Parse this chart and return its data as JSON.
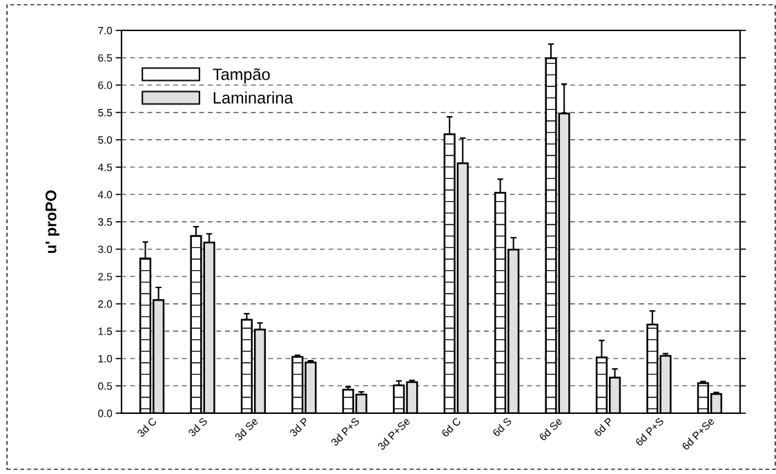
{
  "chart_data": {
    "type": "bar",
    "ylabel": "u' proPO",
    "categories": [
      "3d C",
      "3d S",
      "3d Se",
      "3d P",
      "3d P+S",
      "3d P+Se",
      "6d C",
      "6d S",
      "6d Se",
      "6d P",
      "6d P+S",
      "6d P+Se"
    ],
    "series": [
      {
        "name": "Tampão",
        "color": "#ffffff",
        "values": [
          2.83,
          3.24,
          1.71,
          1.03,
          0.43,
          0.51,
          5.1,
          4.03,
          6.49,
          1.02,
          1.62,
          0.55
        ],
        "errors": [
          [
            2.83,
            3.13
          ],
          [
            3.24,
            3.41
          ],
          [
            1.71,
            1.82
          ],
          [
            1.03,
            1.06
          ],
          [
            0.43,
            0.48
          ],
          [
            0.51,
            0.59
          ],
          [
            5.1,
            5.42
          ],
          [
            4.03,
            4.28
          ],
          [
            6.49,
            6.75
          ],
          [
            1.02,
            1.33
          ],
          [
            1.62,
            1.87
          ],
          [
            0.55,
            0.58
          ]
        ]
      },
      {
        "name": "Laminarina",
        "color": "#e0e0e0",
        "values": [
          2.07,
          3.12,
          1.53,
          0.93,
          0.34,
          0.57,
          4.57,
          2.99,
          5.48,
          0.65,
          1.05,
          0.35
        ],
        "errors": [
          [
            2.07,
            2.3
          ],
          [
            3.12,
            3.28
          ],
          [
            1.53,
            1.65
          ],
          [
            0.93,
            0.96
          ],
          [
            0.34,
            0.39
          ],
          [
            0.57,
            0.6
          ],
          [
            4.57,
            5.03
          ],
          [
            2.99,
            3.21
          ],
          [
            5.48,
            6.02
          ],
          [
            0.65,
            0.81
          ],
          [
            1.05,
            1.09
          ],
          [
            0.35,
            0.38
          ]
        ]
      }
    ],
    "ylim": [
      0,
      7
    ],
    "yticks": [
      {
        "value": 0,
        "label": "0.0"
      },
      {
        "value": 0.5,
        "label": "0.5"
      },
      {
        "value": 1,
        "label": "1.0"
      },
      {
        "value": 1.5,
        "label": "1.5"
      },
      {
        "value": 2,
        "label": "2.0"
      },
      {
        "value": 2.5,
        "label": "2.5"
      },
      {
        "value": 3,
        "label": "3.0"
      },
      {
        "value": 3.5,
        "label": "3.5"
      },
      {
        "value": 4,
        "label": "4.0"
      },
      {
        "value": 4.5,
        "label": "4.5"
      },
      {
        "value": 5,
        "label": "5.0"
      },
      {
        "value": 5.5,
        "label": "5.5"
      },
      {
        "value": 6,
        "label": "6.0"
      },
      {
        "value": 6.5,
        "label": "6.5"
      },
      {
        "value": 7,
        "label": "7.0"
      }
    ],
    "grid": "y",
    "legend": "top left"
  }
}
